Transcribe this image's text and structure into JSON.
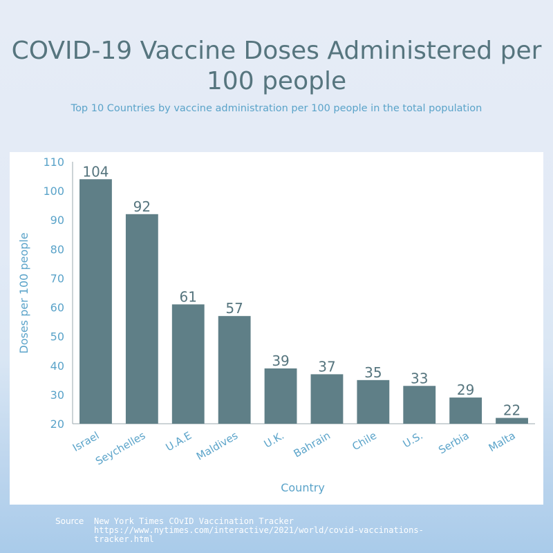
{
  "chart_data": {
    "type": "bar",
    "title": "COVID-19 Vaccine Doses Administered per 100 people",
    "subtitle": "Top 10 Countries by vaccine administration per 100 people in the total population",
    "xlabel": "Country",
    "ylabel": "Doses per 100 people",
    "ylim": [
      20,
      110
    ],
    "yticks": [
      20,
      30,
      40,
      50,
      60,
      70,
      80,
      90,
      100,
      110
    ],
    "categories": [
      "Israel",
      "Seychelles",
      "U.A.E",
      "Maldives",
      "U.K.",
      "Bahrain",
      "Chile",
      "U.S.",
      "Serbia",
      "Malta"
    ],
    "values": [
      104,
      92,
      61,
      57,
      39,
      37,
      35,
      33,
      29,
      22
    ],
    "bar_color": "#5f7f87",
    "label_color": "#56757e",
    "axis_text_color": "#5aa3c9",
    "grid": false
  },
  "source": {
    "label": "Source",
    "text": "New York Times COvID Vaccination Tracker https://www.nytimes.com/interactive/2021/world/covid-vaccinations-tracker.html"
  }
}
